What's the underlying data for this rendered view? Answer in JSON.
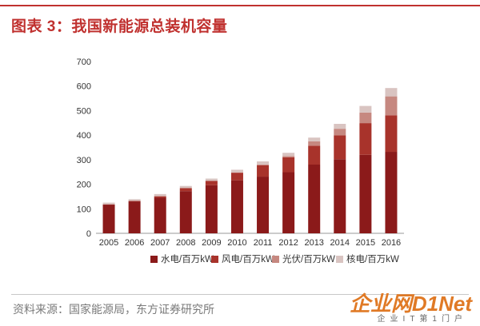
{
  "header": {
    "title": "图表 3：我国新能源总装机容量"
  },
  "footer": {
    "source": "资料来源：国家能源局，东方证券研究所"
  },
  "watermark": {
    "main": "企业网D1Net",
    "sub": "企业IT第1门户"
  },
  "chart_data": {
    "type": "bar",
    "stacked": true,
    "categories": [
      "2005",
      "2006",
      "2007",
      "2008",
      "2009",
      "2010",
      "2011",
      "2012",
      "2013",
      "2014",
      "2015",
      "2016"
    ],
    "ylim": [
      0,
      700
    ],
    "yticks": [
      0,
      100,
      200,
      300,
      400,
      500,
      600,
      700
    ],
    "grid": false,
    "legend_position": "bottom",
    "series": [
      {
        "name": "水电/百万kW",
        "color": "#8b1a1a",
        "values": [
          117,
          130,
          145,
          172,
          196,
          216,
          231,
          249,
          280,
          302,
          320,
          332
        ]
      },
      {
        "name": "风电/百万kW",
        "color": "#a8332b",
        "values": [
          1,
          2,
          6,
          12,
          18,
          31,
          46,
          61,
          77,
          97,
          129,
          149
        ]
      },
      {
        "name": "光伏/百万kW",
        "color": "#c68880",
        "values": [
          0,
          0,
          0,
          0,
          0,
          1,
          3,
          5,
          18,
          27,
          43,
          77
        ]
      },
      {
        "name": "核电/百万kW",
        "color": "#d9c4c1",
        "values": [
          7,
          7,
          9,
          9,
          9,
          11,
          13,
          13,
          15,
          20,
          27,
          34
        ]
      }
    ]
  }
}
